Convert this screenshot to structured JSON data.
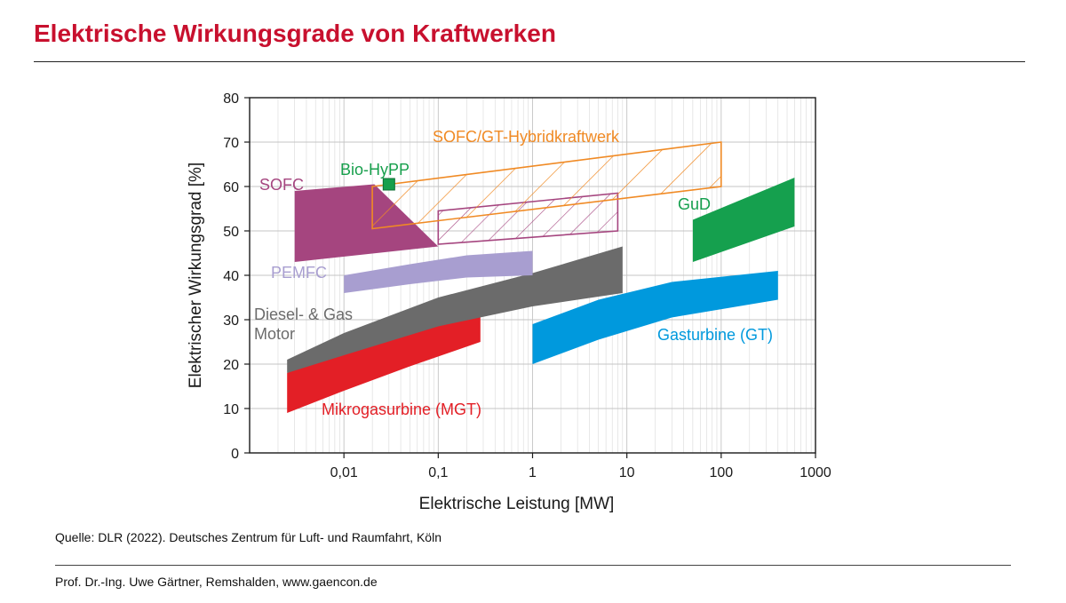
{
  "slide": {
    "title": "Elektrische Wirkungsgrade von Kraftwerken",
    "source": "Quelle: DLR (2022). Deutsches Zentrum für Luft- und Raumfahrt, Köln",
    "footer": "Prof. Dr.-Ing. Uwe Gärtner, Remshalden, www.gaencon.de"
  },
  "chart_data": {
    "type": "area",
    "title": "",
    "xlabel": "Elektrische Leistung [MW]",
    "ylabel": "Elektrischer Wirkungsgrad [%]",
    "xscale": "log",
    "xlim": [
      0.001,
      1000
    ],
    "ylim": [
      0,
      80
    ],
    "xticks": [
      {
        "value": 0.01,
        "label": "0,01"
      },
      {
        "value": 0.1,
        "label": "0,1"
      },
      {
        "value": 1,
        "label": "1"
      },
      {
        "value": 10,
        "label": "10"
      },
      {
        "value": 100,
        "label": "100"
      },
      {
        "value": 1000,
        "label": "1000"
      }
    ],
    "yticks": [
      0,
      10,
      20,
      30,
      40,
      50,
      60,
      70,
      80
    ],
    "grid": true,
    "series": [
      {
        "name": "mgt",
        "label": "Mikrogasurbine (MGT)",
        "color": "#e31f26",
        "style": "fill",
        "x_range": [
          0.0025,
          0.28
        ],
        "upper": [
          [
            0.0025,
            18
          ],
          [
            0.01,
            23.5
          ],
          [
            0.05,
            29
          ],
          [
            0.28,
            33.5
          ]
        ],
        "lower": [
          [
            0.0025,
            9
          ],
          [
            0.01,
            14
          ],
          [
            0.05,
            19.5
          ],
          [
            0.28,
            25
          ]
        ]
      },
      {
        "name": "diesel",
        "label": "Diesel- & Gas Motor",
        "color": "#6b6b6b",
        "style": "fill",
        "x_range": [
          0.0025,
          9
        ],
        "upper": [
          [
            0.0025,
            21
          ],
          [
            0.01,
            27
          ],
          [
            0.1,
            35
          ],
          [
            1,
            40.5
          ],
          [
            9,
            46.5
          ]
        ],
        "lower": [
          [
            0.0025,
            18
          ],
          [
            0.01,
            22
          ],
          [
            0.1,
            28.5
          ],
          [
            1,
            33
          ],
          [
            9,
            36
          ]
        ]
      },
      {
        "name": "pemfc",
        "label": "PEMFC",
        "color": "#a89ed0",
        "style": "fill",
        "x_range": [
          0.01,
          1
        ],
        "upper": [
          [
            0.01,
            40
          ],
          [
            0.05,
            42.5
          ],
          [
            0.2,
            44.5
          ],
          [
            1,
            45.5
          ]
        ],
        "lower": [
          [
            0.01,
            36
          ],
          [
            0.05,
            38
          ],
          [
            0.2,
            39.5
          ],
          [
            1,
            40
          ]
        ]
      },
      {
        "name": "sofc",
        "label": "SOFC",
        "color": "#a5457f",
        "style": "fill",
        "x_range": [
          0.003,
          0.1
        ],
        "upper": [
          [
            0.003,
            59
          ],
          [
            0.021,
            60.5
          ]
        ],
        "lower": [
          [
            0.003,
            43
          ],
          [
            0.1,
            46.5
          ]
        ]
      },
      {
        "name": "sofc-hatched",
        "label": "",
        "color": "#a5457f",
        "style": "hatch",
        "x_range": [
          0.1,
          8
        ],
        "upper": [
          [
            0.1,
            54.5
          ],
          [
            8,
            58.5
          ]
        ],
        "lower": [
          [
            0.1,
            47
          ],
          [
            8,
            50
          ]
        ]
      },
      {
        "name": "sofc-gt",
        "label": "SOFC/GT-Hybridkraftwerk",
        "color": "#f08a24",
        "style": "hatch",
        "x_range": [
          0.02,
          100
        ],
        "upper": [
          [
            0.02,
            60
          ],
          [
            100,
            70
          ]
        ],
        "lower": [
          [
            0.02,
            50.5
          ],
          [
            100,
            60
          ]
        ]
      },
      {
        "name": "bio-hypp",
        "label": "Bio-HyPP",
        "color": "#179f4c",
        "style": "marker",
        "x": 0.03,
        "y": 60.5
      },
      {
        "name": "gud",
        "label": "GuD",
        "color": "#15a04e",
        "style": "fill",
        "x_range": [
          50,
          600
        ],
        "upper": [
          [
            50,
            52.5
          ],
          [
            600,
            62
          ]
        ],
        "lower": [
          [
            50,
            43
          ],
          [
            600,
            51
          ]
        ]
      },
      {
        "name": "gt",
        "label": "Gasturbine (GT)",
        "color": "#0099dd",
        "style": "fill",
        "x_range": [
          1,
          400
        ],
        "upper": [
          [
            1,
            29
          ],
          [
            5,
            34.5
          ],
          [
            30,
            38.5
          ],
          [
            400,
            41
          ]
        ],
        "lower": [
          [
            1,
            20
          ],
          [
            5,
            25.5
          ],
          [
            30,
            30.5
          ],
          [
            400,
            34.5
          ]
        ]
      }
    ]
  }
}
